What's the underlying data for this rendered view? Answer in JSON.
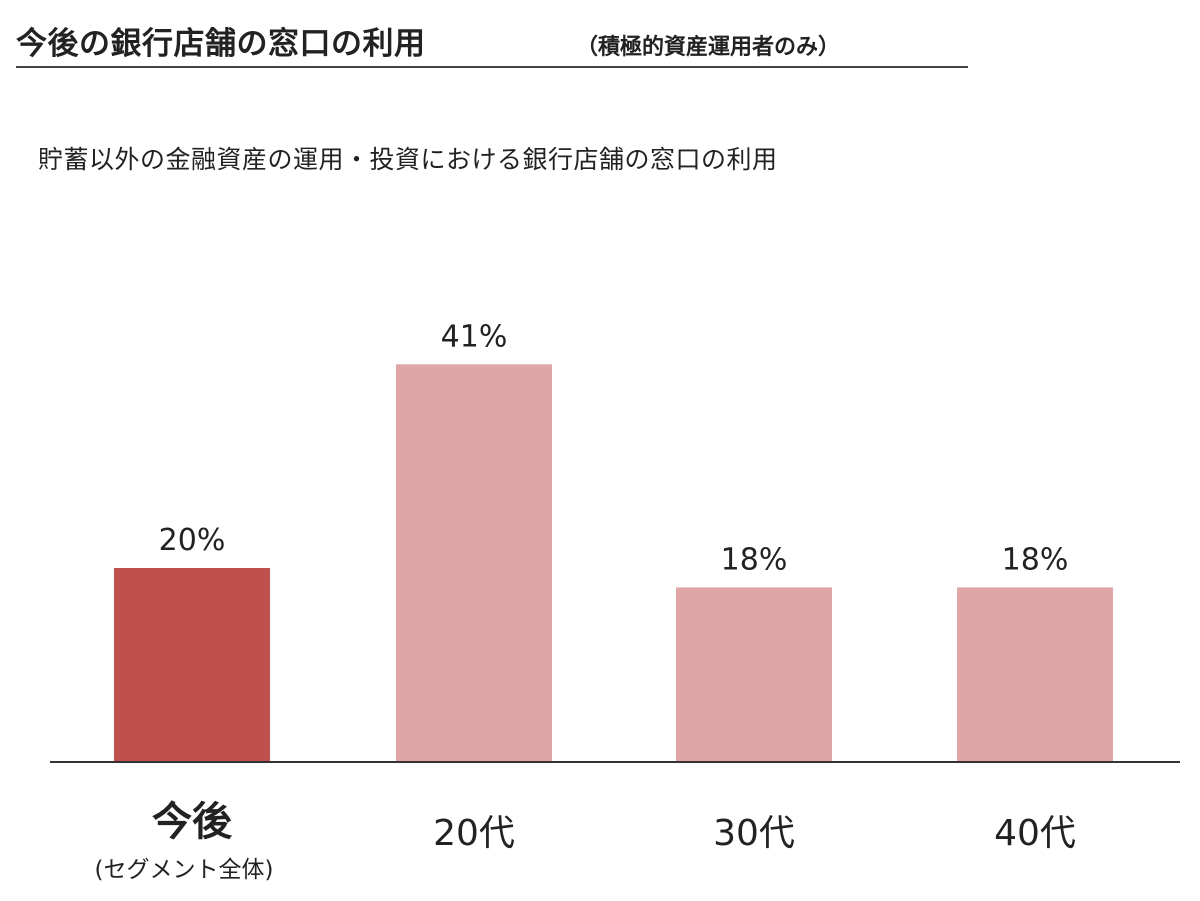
{
  "header": {
    "title": "今後の銀行店舗の窓口の利用",
    "title_note": "（積極的資産運用者のみ）"
  },
  "chart_data": {
    "type": "bar",
    "title": "今後の銀行店舗の窓口の利用",
    "subtitle": "貯蓄以外の金融資産の運用・投資における銀行店舗の窓口の利用",
    "xlabel": "",
    "ylabel": "",
    "unit": "%",
    "categories": [
      "今後",
      "20代",
      "30代",
      "40代"
    ],
    "category_notes": [
      "(セグメント全体)",
      "",
      "",
      ""
    ],
    "values": [
      20,
      41,
      18,
      18
    ],
    "value_labels": [
      "20%",
      "41%",
      "18%",
      "18%"
    ],
    "ylim": [
      0,
      45
    ],
    "grid": false,
    "legend": "none",
    "colors": {
      "highlight": "#C0504D",
      "default": "#DFA6A5",
      "axis": "#333333"
    },
    "highlight_index": 0
  }
}
